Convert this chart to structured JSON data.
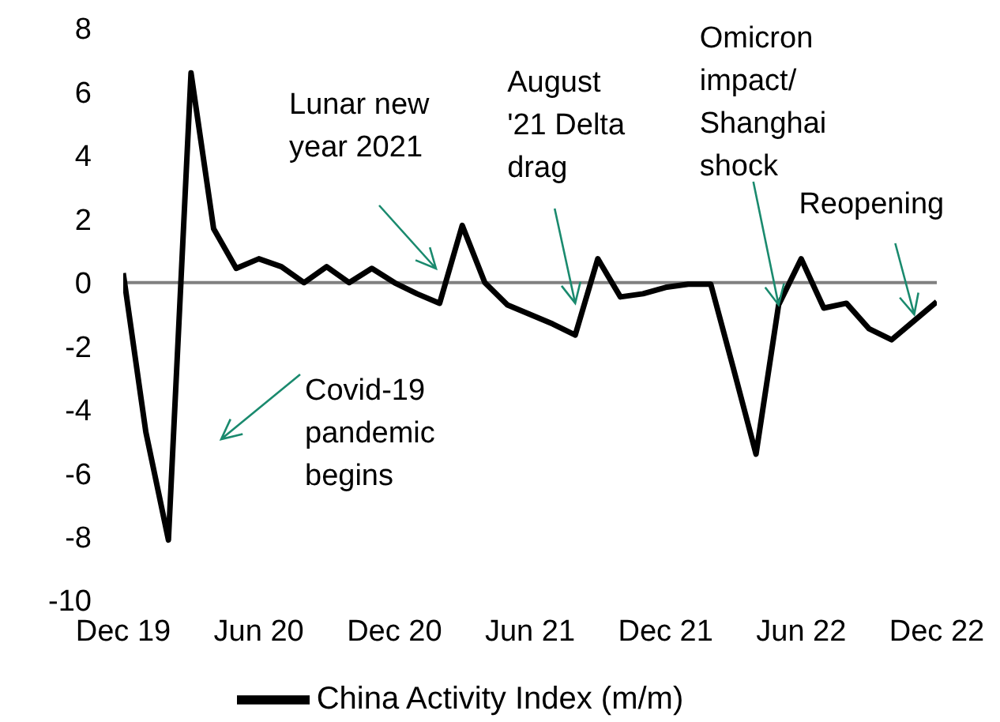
{
  "chart_data": {
    "type": "line",
    "x": [
      "2019-12",
      "2020-01",
      "2020-02",
      "2020-03",
      "2020-04",
      "2020-05",
      "2020-06",
      "2020-07",
      "2020-08",
      "2020-09",
      "2020-10",
      "2020-11",
      "2020-12",
      "2021-01",
      "2021-02",
      "2021-03",
      "2021-04",
      "2021-05",
      "2021-06",
      "2021-07",
      "2021-08",
      "2021-09",
      "2021-10",
      "2021-11",
      "2021-12",
      "2022-01",
      "2022-02",
      "2022-03",
      "2022-04",
      "2022-05",
      "2022-06",
      "2022-07",
      "2022-08",
      "2022-09",
      "2022-10",
      "2022-11",
      "2022-12"
    ],
    "series": [
      {
        "name": "China Activity Index (m/m)",
        "color": "#000000",
        "values": [
          0.3,
          -4.7,
          -8.1,
          6.6,
          1.7,
          0.45,
          0.75,
          0.5,
          0.0,
          0.5,
          0.0,
          0.45,
          0.0,
          -0.35,
          -0.65,
          1.8,
          0.0,
          -0.7,
          -1.0,
          -1.3,
          -1.65,
          0.75,
          -0.45,
          -0.35,
          -0.15,
          -0.05,
          -0.05,
          -2.7,
          -5.4,
          -0.7,
          0.75,
          -0.8,
          -0.65,
          -1.45,
          -1.8,
          -1.2,
          -0.6
        ]
      }
    ],
    "ylim": [
      -10,
      8
    ],
    "yticks": [
      -10,
      -8,
      -6,
      -4,
      -2,
      0,
      2,
      4,
      6,
      8
    ],
    "xlim": [
      "2019-12",
      "2022-12"
    ],
    "xticks": [
      {
        "value": "2019-12",
        "label": "Dec 19"
      },
      {
        "value": "2020-06",
        "label": "Jun 20"
      },
      {
        "value": "2020-12",
        "label": "Dec 20"
      },
      {
        "value": "2021-06",
        "label": "Jun 21"
      },
      {
        "value": "2021-12",
        "label": "Dec 21"
      },
      {
        "value": "2022-06",
        "label": "Jun 22"
      },
      {
        "value": "2022-12",
        "label": "Dec 22"
      }
    ],
    "ref_lines": [
      {
        "axis": "y",
        "value": 0,
        "color": "#808080"
      }
    ],
    "annotations": [
      "Covid-19\npandemic\nbegins",
      "Lunar new\nyear 2021",
      {
        "text": "August\n'21 Delta\ndrag",
        "x": "2021-08",
        "y": -0.65
      },
      {
        "text": "Omicron\nimpact/\nShanghai\nshock",
        "x": "2022-05",
        "y": -0.7
      },
      {
        "text": "Reopening",
        "x": "2022-11",
        "y": -1.0
      }
    ],
    "legend": "bottom",
    "grid": false,
    "marker": "none",
    "line_style": "solid"
  }
}
